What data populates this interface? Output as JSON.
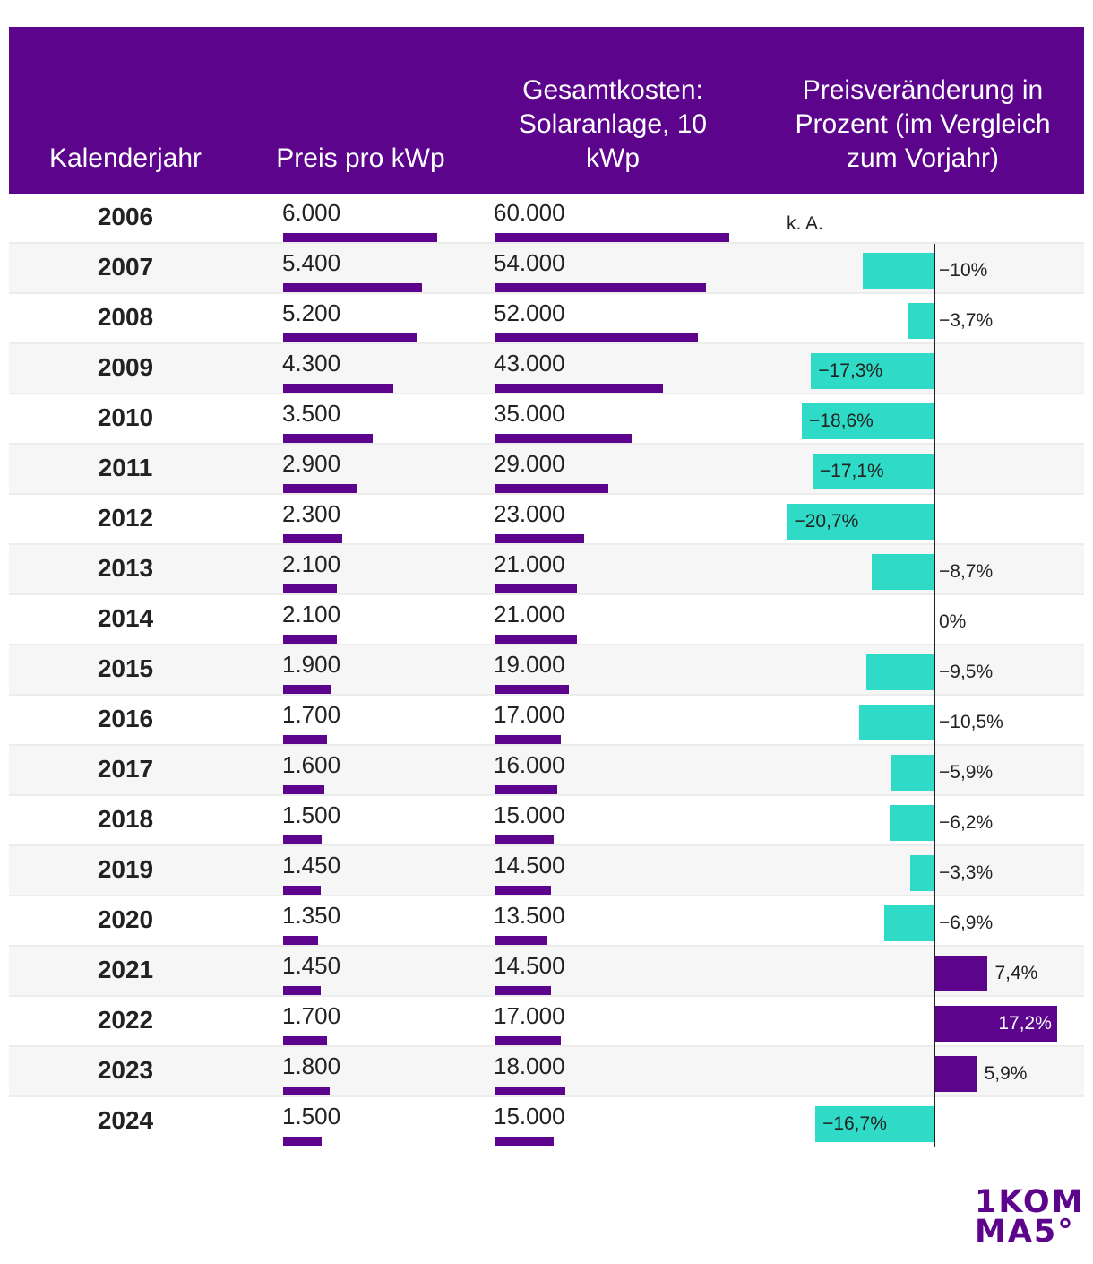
{
  "headers": {
    "year": "Kalenderjahr",
    "price": "Preis pro kWp",
    "total": "Gesamtkosten: Solaranlage, 10 kWp",
    "change": "Preisveränderung in Prozent (im Vergleich zum Vorjahr)"
  },
  "colors": {
    "brand": "#5c058c",
    "negative": "#2fdac6",
    "positive": "#5c058c"
  },
  "logo": {
    "line1": "1KOM",
    "line2": "MA5°"
  },
  "chart_data": {
    "type": "table",
    "title": "",
    "columns": [
      "Kalenderjahr",
      "Preis pro kWp",
      "Gesamtkosten: Solaranlage, 10 kWp",
      "Preisveränderung in Prozent (im Vergleich zum Vorjahr)"
    ],
    "rows": [
      {
        "year": "2006",
        "price": 6000,
        "price_label": "6.000",
        "total": 60000,
        "total_label": "60.000",
        "change": null,
        "change_label": "k. A."
      },
      {
        "year": "2007",
        "price": 5400,
        "price_label": "5.400",
        "total": 54000,
        "total_label": "54.000",
        "change": -10,
        "change_label": "−10%"
      },
      {
        "year": "2008",
        "price": 5200,
        "price_label": "5.200",
        "total": 52000,
        "total_label": "52.000",
        "change": -3.7,
        "change_label": "−3,7%"
      },
      {
        "year": "2009",
        "price": 4300,
        "price_label": "4.300",
        "total": 43000,
        "total_label": "43.000",
        "change": -17.3,
        "change_label": "−17,3%"
      },
      {
        "year": "2010",
        "price": 3500,
        "price_label": "3.500",
        "total": 35000,
        "total_label": "35.000",
        "change": -18.6,
        "change_label": "−18,6%"
      },
      {
        "year": "2011",
        "price": 2900,
        "price_label": "2.900",
        "total": 29000,
        "total_label": "29.000",
        "change": -17.1,
        "change_label": "−17,1%"
      },
      {
        "year": "2012",
        "price": 2300,
        "price_label": "2.300",
        "total": 23000,
        "total_label": "23.000",
        "change": -20.7,
        "change_label": "−20,7%"
      },
      {
        "year": "2013",
        "price": 2100,
        "price_label": "2.100",
        "total": 21000,
        "total_label": "21.000",
        "change": -8.7,
        "change_label": "−8,7%"
      },
      {
        "year": "2014",
        "price": 2100,
        "price_label": "2.100",
        "total": 21000,
        "total_label": "21.000",
        "change": 0,
        "change_label": "0%"
      },
      {
        "year": "2015",
        "price": 1900,
        "price_label": "1.900",
        "total": 19000,
        "total_label": "19.000",
        "change": -9.5,
        "change_label": "−9,5%"
      },
      {
        "year": "2016",
        "price": 1700,
        "price_label": "1.700",
        "total": 17000,
        "total_label": "17.000",
        "change": -10.5,
        "change_label": "−10,5%"
      },
      {
        "year": "2017",
        "price": 1600,
        "price_label": "1.600",
        "total": 16000,
        "total_label": "16.000",
        "change": -5.9,
        "change_label": "−5,9%"
      },
      {
        "year": "2018",
        "price": 1500,
        "price_label": "1.500",
        "total": 15000,
        "total_label": "15.000",
        "change": -6.2,
        "change_label": "−6,2%"
      },
      {
        "year": "2019",
        "price": 1450,
        "price_label": "1.450",
        "total": 14500,
        "total_label": "14.500",
        "change": -3.3,
        "change_label": "−3,3%"
      },
      {
        "year": "2020",
        "price": 1350,
        "price_label": "1.350",
        "total": 13500,
        "total_label": "13.500",
        "change": -6.9,
        "change_label": "−6,9%"
      },
      {
        "year": "2021",
        "price": 1450,
        "price_label": "1.450",
        "total": 14500,
        "total_label": "14.500",
        "change": 7.4,
        "change_label": "7,4%"
      },
      {
        "year": "2022",
        "price": 1700,
        "price_label": "1.700",
        "total": 17000,
        "total_label": "17.000",
        "change": 17.2,
        "change_label": "17,2%"
      },
      {
        "year": "2023",
        "price": 1800,
        "price_label": "1.800",
        "total": 18000,
        "total_label": "18.000",
        "change": 5.9,
        "change_label": "5,9%"
      },
      {
        "year": "2024",
        "price": 1500,
        "price_label": "1.500",
        "total": 15000,
        "total_label": "15.000",
        "change": -16.7,
        "change_label": "−16,7%"
      }
    ]
  }
}
